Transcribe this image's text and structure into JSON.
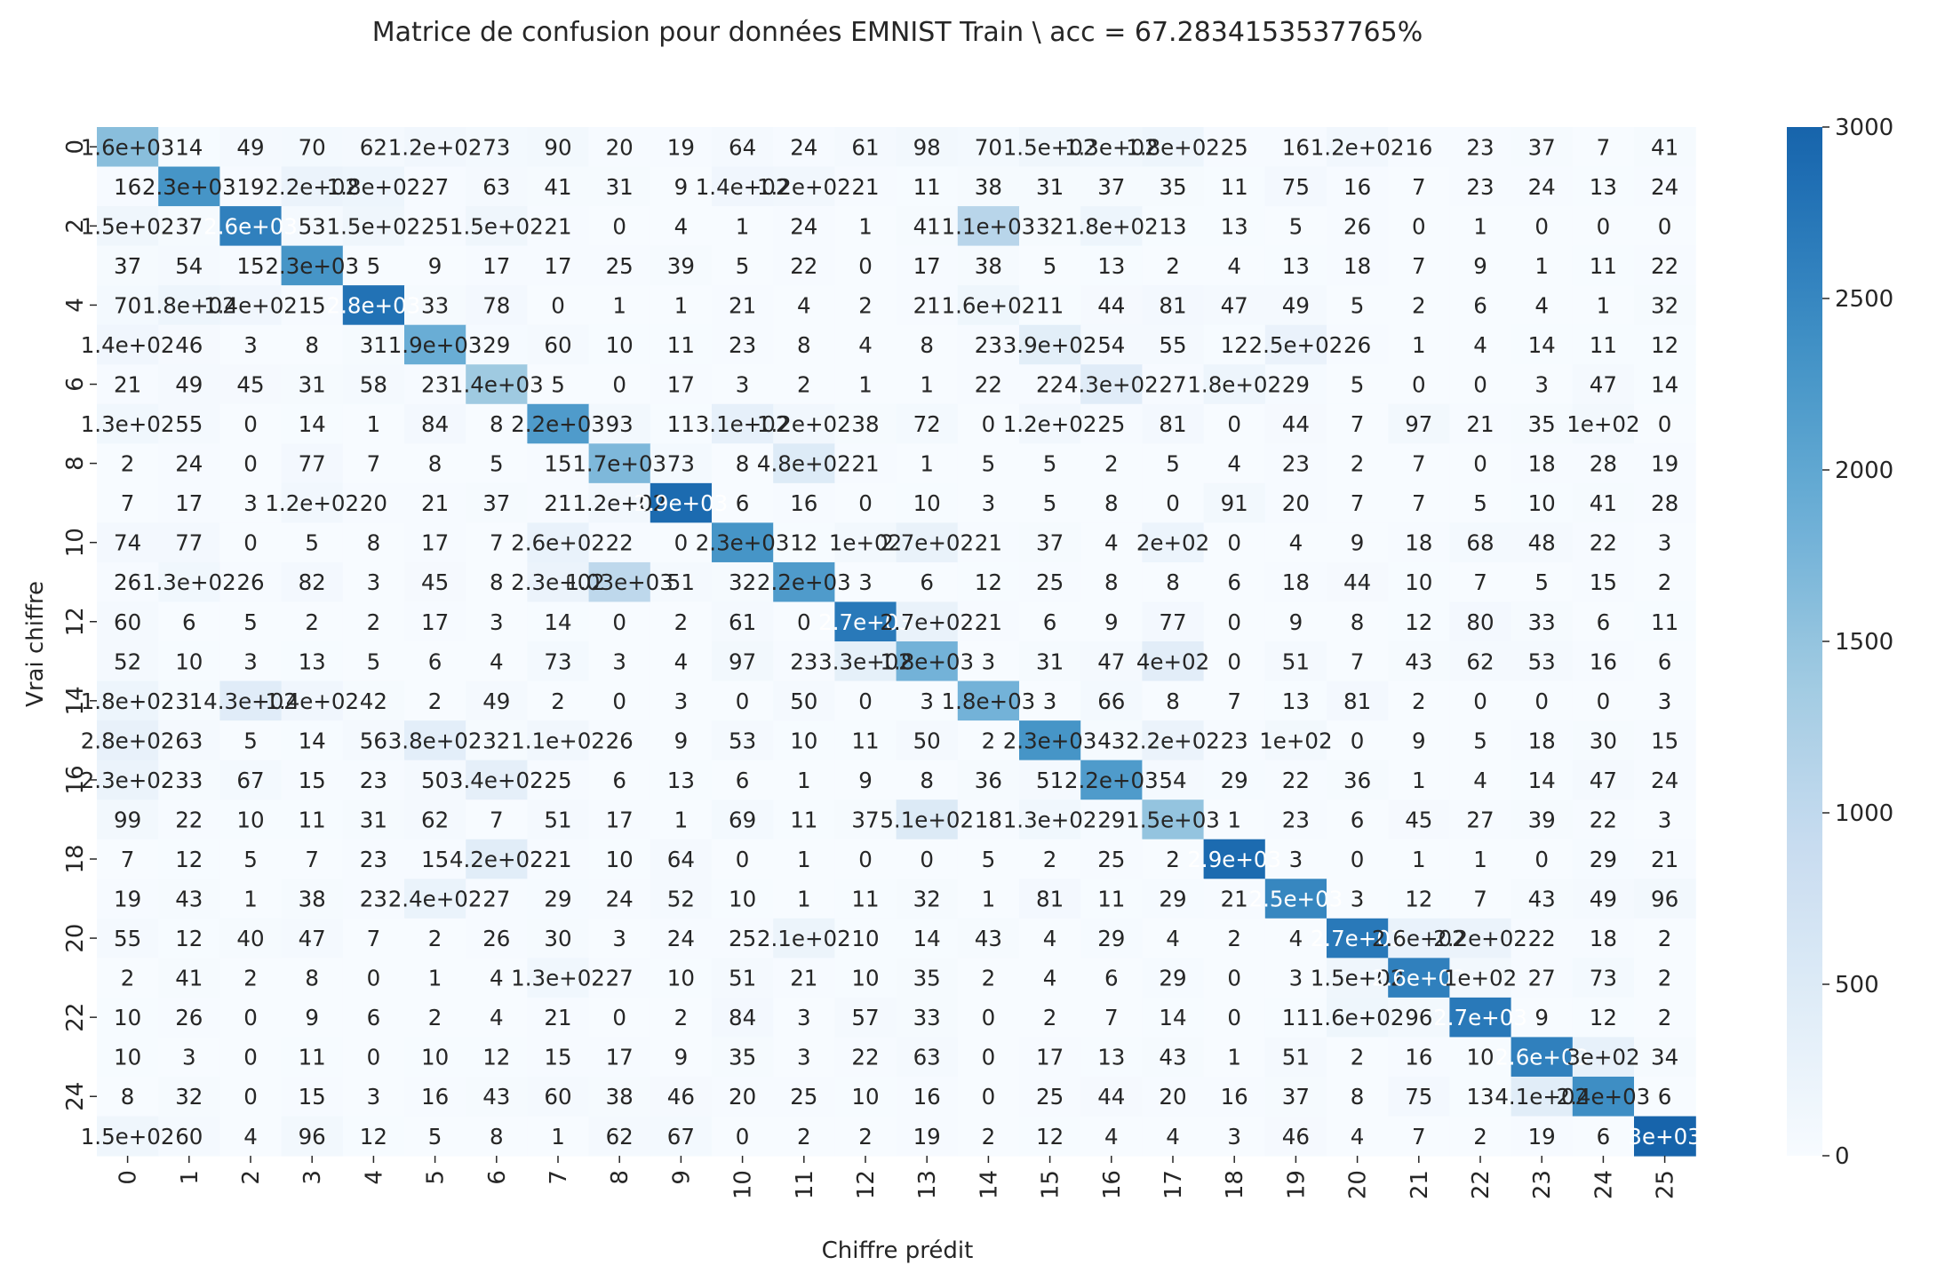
{
  "chart_data": {
    "type": "heatmap",
    "title": "Matrice de confusion pour données EMNIST Train \\ acc = 67.2834153537765%",
    "xlabel": "Chiffre prédit",
    "ylabel": "Vrai chiffre",
    "x_tick_labels": [
      "0",
      "1",
      "2",
      "3",
      "4",
      "5",
      "6",
      "7",
      "8",
      "9",
      "10",
      "11",
      "12",
      "13",
      "14",
      "15",
      "16",
      "17",
      "18",
      "19",
      "20",
      "21",
      "22",
      "23",
      "24",
      "25"
    ],
    "y_tick_labels": [
      "0",
      "2",
      "4",
      "6",
      "8",
      "10",
      "12",
      "14",
      "16",
      "18",
      "20",
      "22",
      "24"
    ],
    "colormap": "Blues",
    "color_range": [
      0,
      3000
    ],
    "colorbar_ticks": [
      "0",
      "500",
      "1000",
      "1500",
      "2000",
      "2500",
      "3000"
    ],
    "label_color_dark": "#262626",
    "label_color_light": "#ffffff",
    "values": [
      [
        1600,
        14,
        49,
        70,
        62,
        120,
        73,
        90,
        20,
        19,
        64,
        24,
        61,
        98,
        70,
        150,
        130,
        180,
        25,
        16,
        120,
        16,
        23,
        37,
        7,
        41
      ],
      [
        16,
        2300,
        19,
        220,
        180,
        27,
        63,
        41,
        31,
        9,
        140,
        120,
        21,
        11,
        38,
        31,
        37,
        35,
        11,
        75,
        16,
        7,
        23,
        24,
        13,
        24
      ],
      [
        150,
        37,
        2600,
        53,
        150,
        25,
        150,
        21,
        0,
        4,
        1,
        24,
        1,
        41,
        1100,
        32,
        180,
        13,
        13,
        5,
        26,
        0,
        1,
        0,
        0,
        0
      ],
      [
        37,
        54,
        15,
        2300,
        5,
        9,
        17,
        17,
        25,
        39,
        5,
        22,
        0,
        17,
        38,
        5,
        13,
        2,
        4,
        13,
        18,
        7,
        9,
        1,
        11,
        22
      ],
      [
        70,
        180,
        140,
        15,
        2800,
        33,
        78,
        0,
        1,
        1,
        21,
        4,
        2,
        21,
        160,
        11,
        44,
        81,
        47,
        49,
        5,
        2,
        6,
        4,
        1,
        32
      ],
      [
        140,
        46,
        3,
        8,
        31,
        1900,
        29,
        60,
        10,
        11,
        23,
        8,
        4,
        8,
        23,
        390,
        54,
        55,
        12,
        250,
        26,
        1,
        4,
        14,
        11,
        12
      ],
      [
        21,
        49,
        45,
        31,
        58,
        23,
        1400,
        5,
        0,
        17,
        3,
        2,
        1,
        1,
        22,
        22,
        430,
        27,
        180,
        29,
        5,
        0,
        0,
        3,
        47,
        14
      ],
      [
        130,
        55,
        0,
        14,
        1,
        84,
        8,
        2200,
        93,
        11,
        310,
        120,
        38,
        72,
        0,
        120,
        25,
        81,
        0,
        44,
        7,
        97,
        21,
        35,
        100,
        0
      ],
      [
        2,
        24,
        0,
        77,
        7,
        8,
        5,
        15,
        1700,
        73,
        8,
        480,
        21,
        1,
        5,
        5,
        2,
        5,
        4,
        23,
        2,
        7,
        0,
        18,
        28,
        19
      ],
      [
        7,
        17,
        3,
        120,
        20,
        21,
        37,
        21,
        120,
        2900,
        6,
        16,
        0,
        10,
        3,
        5,
        8,
        0,
        91,
        20,
        7,
        7,
        5,
        10,
        41,
        28
      ],
      [
        74,
        77,
        0,
        5,
        8,
        17,
        7,
        260,
        22,
        0,
        2300,
        12,
        100,
        270,
        21,
        37,
        4,
        200,
        0,
        4,
        9,
        18,
        68,
        48,
        22,
        3
      ],
      [
        26,
        130,
        26,
        82,
        3,
        45,
        8,
        230,
        1030,
        51,
        32,
        2200,
        3,
        6,
        12,
        25,
        8,
        8,
        6,
        18,
        44,
        10,
        7,
        5,
        15,
        2
      ],
      [
        60,
        6,
        5,
        2,
        2,
        17,
        3,
        14,
        0,
        2,
        61,
        0,
        2700,
        270,
        21,
        6,
        9,
        77,
        0,
        9,
        8,
        12,
        80,
        33,
        6,
        11
      ],
      [
        52,
        10,
        3,
        13,
        5,
        6,
        4,
        73,
        3,
        4,
        97,
        23,
        330,
        1800,
        3,
        31,
        47,
        400,
        0,
        51,
        7,
        43,
        62,
        53,
        16,
        6
      ],
      [
        180,
        31,
        430,
        140,
        42,
        2,
        49,
        2,
        0,
        3,
        0,
        50,
        0,
        3,
        1800,
        3,
        66,
        8,
        7,
        13,
        81,
        2,
        0,
        0,
        0,
        3
      ],
      [
        280,
        63,
        5,
        14,
        56,
        380,
        32,
        110,
        26,
        9,
        53,
        10,
        11,
        50,
        2,
        2300,
        43,
        220,
        23,
        100,
        0,
        9,
        5,
        18,
        30,
        15
      ],
      [
        230,
        33,
        67,
        15,
        23,
        50,
        340,
        25,
        6,
        13,
        6,
        1,
        9,
        8,
        36,
        51,
        2200,
        54,
        29,
        22,
        36,
        1,
        4,
        14,
        47,
        24
      ],
      [
        99,
        22,
        10,
        11,
        31,
        62,
        7,
        51,
        17,
        1,
        69,
        11,
        37,
        510,
        18,
        130,
        29,
        1500,
        1,
        23,
        6,
        45,
        27,
        39,
        22,
        3
      ],
      [
        7,
        12,
        5,
        7,
        23,
        15,
        420,
        21,
        10,
        64,
        0,
        1,
        0,
        0,
        5,
        2,
        25,
        2,
        2900,
        3,
        0,
        1,
        1,
        0,
        29,
        21
      ],
      [
        19,
        43,
        1,
        38,
        23,
        240,
        27,
        29,
        24,
        52,
        10,
        1,
        11,
        32,
        1,
        81,
        11,
        29,
        21,
        2500,
        3,
        12,
        7,
        43,
        49,
        96
      ],
      [
        55,
        12,
        40,
        47,
        7,
        2,
        26,
        30,
        3,
        24,
        25,
        210,
        10,
        14,
        43,
        4,
        29,
        4,
        2,
        4,
        2700,
        260,
        220,
        22,
        18,
        2
      ],
      [
        2,
        41,
        2,
        8,
        0,
        1,
        4,
        130,
        27,
        10,
        51,
        21,
        10,
        35,
        2,
        4,
        6,
        29,
        0,
        3,
        150,
        2600,
        100,
        27,
        73,
        2
      ],
      [
        10,
        26,
        0,
        9,
        6,
        2,
        4,
        21,
        0,
        2,
        84,
        3,
        57,
        33,
        0,
        2,
        7,
        14,
        0,
        11,
        160,
        96,
        2700,
        9,
        12,
        2
      ],
      [
        10,
        3,
        0,
        11,
        0,
        10,
        12,
        15,
        17,
        9,
        35,
        3,
        22,
        63,
        0,
        17,
        13,
        43,
        1,
        51,
        2,
        16,
        10,
        2600,
        300,
        34
      ],
      [
        8,
        32,
        0,
        15,
        3,
        16,
        43,
        60,
        38,
        46,
        20,
        25,
        10,
        16,
        0,
        25,
        44,
        20,
        16,
        37,
        8,
        75,
        13,
        410,
        2400,
        6
      ],
      [
        150,
        60,
        4,
        96,
        12,
        5,
        8,
        1,
        62,
        67,
        0,
        2,
        2,
        19,
        2,
        12,
        4,
        4,
        3,
        46,
        4,
        7,
        2,
        19,
        6,
        3000
      ]
    ],
    "annotations": [
      [
        "1.6e+03",
        "14",
        "49",
        "70",
        "62",
        "1.2e+02",
        "73",
        "90",
        "20",
        "19",
        "64",
        "24",
        "61",
        "98",
        "70",
        "1.5e+02",
        "1.3e+02",
        "1.8e+02",
        "25",
        "16",
        "1.2e+02",
        "16",
        "23",
        "37",
        "7",
        "41"
      ],
      [
        "16",
        "2.3e+03",
        "19",
        "2.2e+02",
        "1.8e+02",
        "27",
        "63",
        "41",
        "31",
        "9",
        "1.4e+02",
        "1.2e+02",
        "21",
        "11",
        "38",
        "31",
        "37",
        "35",
        "11",
        "75",
        "16",
        "7",
        "23",
        "24",
        "13",
        "24"
      ],
      [
        "1.5e+02",
        "37",
        "2.6e+03",
        "53",
        "1.5e+02",
        "25",
        "1.5e+02",
        "21",
        "0",
        "4",
        "1",
        "24",
        "1",
        "41",
        "1.1e+03",
        "32",
        "1.8e+02",
        "13",
        "13",
        "5",
        "26",
        "0",
        "1",
        "0",
        "0",
        "0"
      ],
      [
        "37",
        "54",
        "15",
        "2.3e+03",
        "5",
        "9",
        "17",
        "17",
        "25",
        "39",
        "5",
        "22",
        "0",
        "17",
        "38",
        "5",
        "13",
        "2",
        "4",
        "13",
        "18",
        "7",
        "9",
        "1",
        "11",
        "22"
      ],
      [
        "70",
        "1.8e+02",
        "1.4e+02",
        "15",
        "2.8e+03",
        "33",
        "78",
        "0",
        "1",
        "1",
        "21",
        "4",
        "2",
        "21",
        "1.6e+02",
        "11",
        "44",
        "81",
        "47",
        "49",
        "5",
        "2",
        "6",
        "4",
        "1",
        "32"
      ],
      [
        "1.4e+02",
        "46",
        "3",
        "8",
        "31",
        "1.9e+03",
        "29",
        "60",
        "10",
        "11",
        "23",
        "8",
        "4",
        "8",
        "23",
        "3.9e+02",
        "54",
        "55",
        "12",
        "2.5e+02",
        "26",
        "1",
        "4",
        "14",
        "11",
        "12"
      ],
      [
        "21",
        "49",
        "45",
        "31",
        "58",
        "23",
        "1.4e+03",
        "5",
        "0",
        "17",
        "3",
        "2",
        "1",
        "1",
        "22",
        "22",
        "4.3e+02",
        "27",
        "1.8e+02",
        "29",
        "5",
        "0",
        "0",
        "3",
        "47",
        "14"
      ],
      [
        "1.3e+02",
        "55",
        "0",
        "14",
        "1",
        "84",
        "8",
        "2.2e+03",
        "93",
        "11",
        "3.1e+02",
        "1.2e+02",
        "38",
        "72",
        "0",
        "1.2e+02",
        "25",
        "81",
        "0",
        "44",
        "7",
        "97",
        "21",
        "35",
        "1e+02",
        "0"
      ],
      [
        "2",
        "24",
        "0",
        "77",
        "7",
        "8",
        "5",
        "15",
        "1.7e+03",
        "73",
        "8",
        "4.8e+02",
        "21",
        "1",
        "5",
        "5",
        "2",
        "5",
        "4",
        "23",
        "2",
        "7",
        "0",
        "18",
        "28",
        "19"
      ],
      [
        "7",
        "17",
        "3",
        "1.2e+02",
        "20",
        "21",
        "37",
        "21",
        "1.2e+02",
        "2.9e+03",
        "6",
        "16",
        "0",
        "10",
        "3",
        "5",
        "8",
        "0",
        "91",
        "20",
        "7",
        "7",
        "5",
        "10",
        "41",
        "28"
      ],
      [
        "74",
        "77",
        "0",
        "5",
        "8",
        "17",
        "7",
        "2.6e+02",
        "22",
        "0",
        "2.3e+03",
        "12",
        "1e+02",
        "2.7e+02",
        "21",
        "37",
        "4",
        "2e+02",
        "0",
        "4",
        "9",
        "18",
        "68",
        "48",
        "22",
        "3"
      ],
      [
        "26",
        "1.3e+02",
        "26",
        "82",
        "3",
        "45",
        "8",
        "2.3e+02",
        "1.03e+03",
        "51",
        "32",
        "2.2e+03",
        "3",
        "6",
        "12",
        "25",
        "8",
        "8",
        "6",
        "18",
        "44",
        "10",
        "7",
        "5",
        "15",
        "2"
      ],
      [
        "60",
        "6",
        "5",
        "2",
        "2",
        "17",
        "3",
        "14",
        "0",
        "2",
        "61",
        "0",
        "2.7e+03",
        "2.7e+02",
        "21",
        "6",
        "9",
        "77",
        "0",
        "9",
        "8",
        "12",
        "80",
        "33",
        "6",
        "11"
      ],
      [
        "52",
        "10",
        "3",
        "13",
        "5",
        "6",
        "4",
        "73",
        "3",
        "4",
        "97",
        "23",
        "3.3e+02",
        "1.8e+03",
        "3",
        "31",
        "47",
        "4e+02",
        "0",
        "51",
        "7",
        "43",
        "62",
        "53",
        "16",
        "6"
      ],
      [
        "1.8e+02",
        "31",
        "4.3e+02",
        "1.4e+02",
        "42",
        "2",
        "49",
        "2",
        "0",
        "3",
        "0",
        "50",
        "0",
        "3",
        "1.8e+03",
        "3",
        "66",
        "8",
        "7",
        "13",
        "81",
        "2",
        "0",
        "0",
        "0",
        "3"
      ],
      [
        "2.8e+02",
        "63",
        "5",
        "14",
        "56",
        "3.8e+02",
        "32",
        "1.1e+02",
        "26",
        "9",
        "53",
        "10",
        "11",
        "50",
        "2",
        "2.3e+03",
        "43",
        "2.2e+02",
        "23",
        "1e+02",
        "0",
        "9",
        "5",
        "18",
        "30",
        "15"
      ],
      [
        "2.3e+02",
        "33",
        "67",
        "15",
        "23",
        "50",
        "3.4e+02",
        "25",
        "6",
        "13",
        "6",
        "1",
        "9",
        "8",
        "36",
        "51",
        "2.2e+03",
        "54",
        "29",
        "22",
        "36",
        "1",
        "4",
        "14",
        "47",
        "24"
      ],
      [
        "99",
        "22",
        "10",
        "11",
        "31",
        "62",
        "7",
        "51",
        "17",
        "1",
        "69",
        "11",
        "37",
        "5.1e+02",
        "18",
        "1.3e+02",
        "29",
        "1.5e+03",
        "1",
        "23",
        "6",
        "45",
        "27",
        "39",
        "22",
        "3"
      ],
      [
        "7",
        "12",
        "5",
        "7",
        "23",
        "15",
        "4.2e+02",
        "21",
        "10",
        "64",
        "0",
        "1",
        "0",
        "0",
        "5",
        "2",
        "25",
        "2",
        "2.9e+03",
        "3",
        "0",
        "1",
        "1",
        "0",
        "29",
        "21"
      ],
      [
        "19",
        "43",
        "1",
        "38",
        "23",
        "2.4e+02",
        "27",
        "29",
        "24",
        "52",
        "10",
        "1",
        "11",
        "32",
        "1",
        "81",
        "11",
        "29",
        "21",
        "2.5e+03",
        "3",
        "12",
        "7",
        "43",
        "49",
        "96"
      ],
      [
        "55",
        "12",
        "40",
        "47",
        "7",
        "2",
        "26",
        "30",
        "3",
        "24",
        "25",
        "2.1e+02",
        "10",
        "14",
        "43",
        "4",
        "29",
        "4",
        "2",
        "4",
        "2.7e+03",
        "2.6e+02",
        "2.2e+02",
        "22",
        "18",
        "2"
      ],
      [
        "2",
        "41",
        "2",
        "8",
        "0",
        "1",
        "4",
        "1.3e+02",
        "27",
        "10",
        "51",
        "21",
        "10",
        "35",
        "2",
        "4",
        "6",
        "29",
        "0",
        "3",
        "1.5e+02",
        "2.6e+03",
        "1e+02",
        "27",
        "73",
        "2"
      ],
      [
        "10",
        "26",
        "0",
        "9",
        "6",
        "2",
        "4",
        "21",
        "0",
        "2",
        "84",
        "3",
        "57",
        "33",
        "0",
        "2",
        "7",
        "14",
        "0",
        "11",
        "1.6e+02",
        "96",
        "2.7e+03",
        "9",
        "12",
        "2"
      ],
      [
        "10",
        "3",
        "0",
        "11",
        "0",
        "10",
        "12",
        "15",
        "17",
        "9",
        "35",
        "3",
        "22",
        "63",
        "0",
        "17",
        "13",
        "43",
        "1",
        "51",
        "2",
        "16",
        "10",
        "2.6e+03",
        "3e+02",
        "34"
      ],
      [
        "8",
        "32",
        "0",
        "15",
        "3",
        "16",
        "43",
        "60",
        "38",
        "46",
        "20",
        "25",
        "10",
        "16",
        "0",
        "25",
        "44",
        "20",
        "16",
        "37",
        "8",
        "75",
        "13",
        "4.1e+02",
        "2.4e+03",
        "6"
      ],
      [
        "1.5e+02",
        "60",
        "4",
        "96",
        "12",
        "5",
        "8",
        "1",
        "62",
        "67",
        "0",
        "2",
        "2",
        "19",
        "2",
        "12",
        "4",
        "4",
        "3",
        "46",
        "4",
        "7",
        "2",
        "19",
        "6",
        "3e+03"
      ]
    ]
  }
}
